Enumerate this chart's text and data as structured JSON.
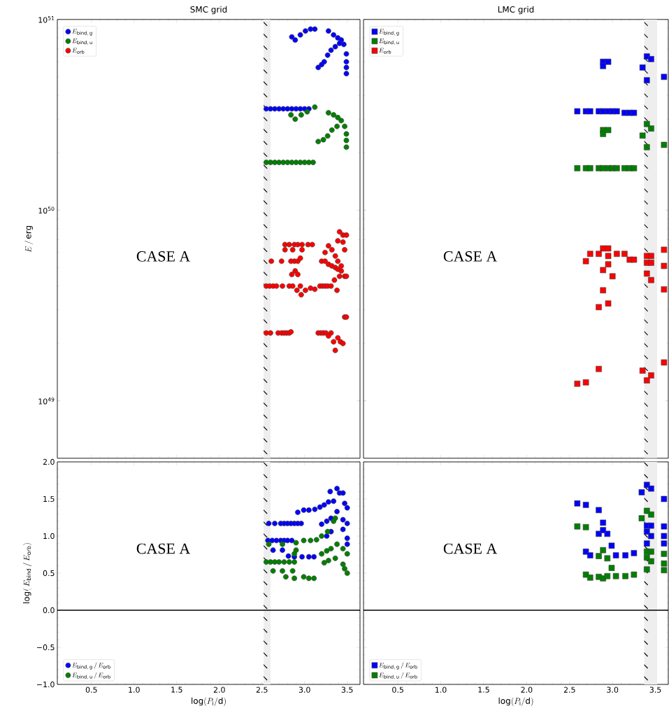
{
  "chart_data": [
    {
      "type": "scatter",
      "title": "SMC grid",
      "ylabel": "E\\,/\\,\\mathrm{erg}",
      "log": true,
      "marker": "circle",
      "legend": "top left",
      "tick_labels": "y",
      "xlim": [
        0.1,
        3.65
      ],
      "ylim": [
        5e+48,
        1e+51
      ],
      "xticks": [
        0.5,
        1.0,
        1.5,
        2.0,
        2.5,
        3.0,
        3.5
      ],
      "yticks": [
        {
          "value": 1e+49,
          "label": "10$^{49}$"
        },
        {
          "value": 1e+50,
          "label": "10$^{50}$"
        },
        {
          "value": 1e+51,
          "label": "10$^{51}$"
        }
      ],
      "bands": [
        {
          "axis": "x",
          "from": 2.52,
          "to": 2.6,
          "color": "#eeeeee"
        }
      ],
      "annotations": [
        "CASE A"
      ],
      "series": [
        {
          "name": "E_{\\mathrm{bind,\\,g}}",
          "color": "#0000ff",
          "x": [
            2.85,
            2.89,
            2.95,
            3.01,
            3.07,
            3.12,
            3.28,
            3.34,
            3.39,
            3.43,
            3.46,
            3.49,
            3.49,
            3.49,
            3.49,
            3.16,
            3.2,
            3.23,
            3.27,
            3.31,
            3.36,
            3.41,
            2.55,
            2.6,
            2.65,
            2.7,
            2.75,
            2.8,
            2.85,
            2.9,
            2.95,
            3.0,
            3.05
          ],
          "values": [
            8.1e+50,
            7.8e+50,
            8.3e+50,
            8.7e+50,
            8.9e+50,
            8.9e+50,
            8.7e+50,
            8.3e+50,
            8e+50,
            7.8e+50,
            7.4e+50,
            6.6e+50,
            6e+50,
            5.6e+50,
            5.2e+50,
            5.6e+50,
            5.8e+50,
            6e+50,
            6.5e+50,
            6.9e+50,
            7.2e+50,
            7.5e+50,
            3.4e+50,
            3.4e+50,
            3.4e+50,
            3.4e+50,
            3.4e+50,
            3.4e+50,
            3.4e+50,
            3.4e+50,
            3.4e+50,
            3.4e+50,
            3.4e+50
          ]
        },
        {
          "name": "E_{\\mathrm{bind,\\,u}}",
          "color": "#008000",
          "x": [
            2.84,
            2.89,
            2.96,
            3.03,
            3.12,
            3.28,
            3.34,
            3.39,
            3.43,
            3.47,
            3.49,
            3.49,
            3.49,
            3.16,
            3.22,
            3.27,
            3.32,
            3.38,
            2.55,
            2.6,
            2.65,
            2.7,
            2.75,
            2.8,
            2.85,
            2.9,
            2.95,
            3.0,
            3.05,
            3.1
          ],
          "values": [
            3.16e+50,
            3e+50,
            3.16e+50,
            3.28e+50,
            3.47e+50,
            3.24e+50,
            3.16e+50,
            3.06e+50,
            2.95e+50,
            2.75e+50,
            2.51e+50,
            2.32e+50,
            2.14e+50,
            2.29e+50,
            2.34e+50,
            2.45e+50,
            2.63e+50,
            2.75e+50,
            1.78e+50,
            1.78e+50,
            1.78e+50,
            1.78e+50,
            1.78e+50,
            1.78e+50,
            1.78e+50,
            1.78e+50,
            1.78e+50,
            1.78e+50,
            1.78e+50,
            1.78e+50
          ]
        },
        {
          "name": "E_{\\mathrm{orb}}",
          "color": "#ff0000",
          "x": [
            2.77,
            2.82,
            2.88,
            2.92,
            2.97,
            3.04,
            3.09,
            2.77,
            2.86,
            2.97,
            2.61,
            2.73,
            2.84,
            2.88,
            2.92,
            2.95,
            2.89,
            2.92,
            2.85,
            2.55,
            2.59,
            2.63,
            2.67,
            2.74,
            2.82,
            2.86,
            2.95,
            2.91,
            2.96,
            3.01,
            3.07,
            3.12,
            3.18,
            3.21,
            3.24,
            3.27,
            3.31,
            3.35,
            3.38,
            3.2,
            3.24,
            3.28,
            3.32,
            3.36,
            3.39,
            3.43,
            3.43,
            3.41,
            3.47,
            3.49,
            3.24,
            3.28,
            3.32,
            3.36,
            3.39,
            3.41,
            3.45,
            3.49,
            3.39,
            3.45,
            3.47,
            3.47,
            3.49,
            2.55,
            2.6,
            2.69,
            2.73,
            2.76,
            2.79,
            2.82,
            2.84,
            3.16,
            3.19,
            3.22,
            3.25,
            3.31,
            3.28,
            3.34,
            3.39,
            3.42,
            3.45,
            3.36
          ],
          "values": [
            6.6e+49,
            6.6e+49,
            6.6e+49,
            6.6e+49,
            6.6e+49,
            6.6e+49,
            6.6e+49,
            6.2e+49,
            6.2e+49,
            6.2e+49,
            5.4e+49,
            5.4e+49,
            5.4e+49,
            5.4e+49,
            5.4e+49,
            5.6e+49,
            4.8e+49,
            4.6e+49,
            4.6e+49,
            4e+49,
            4e+49,
            4e+49,
            4e+49,
            4e+49,
            4e+49,
            4e+49,
            4e+49,
            3.8e+49,
            3.6e+49,
            3.8e+49,
            3.9e+49,
            3.85e+49,
            4e+49,
            4e+49,
            4e+49,
            4e+49,
            4e+49,
            4.3e+49,
            3.8e+49,
            5.4e+49,
            5.4e+49,
            5.2e+49,
            5.1e+49,
            5e+49,
            4.9e+49,
            5.1e+49,
            4.8e+49,
            4.5e+49,
            4.5e+49,
            4.5e+49,
            6e+49,
            6.5e+49,
            6.2e+49,
            5.75e+49,
            5.4e+49,
            7.7e+49,
            7.4e+49,
            7.4e+49,
            6.9e+49,
            6.8e+49,
            6.2e+49,
            2.75e+49,
            2.75e+49,
            2.27e+49,
            2.27e+49,
            2.27e+49,
            2.27e+49,
            2.27e+49,
            2.27e+49,
            2.27e+49,
            2.3e+49,
            2.27e+49,
            2.27e+49,
            2.27e+49,
            2.27e+49,
            2.27e+49,
            2.19e+49,
            2.04e+49,
            2.14e+49,
            2.04e+49,
            2e+49,
            1.84e+49
          ]
        }
      ]
    },
    {
      "type": "scatter",
      "title": "LMC grid",
      "log": true,
      "marker": "square",
      "legend": "top left",
      "tick_labels": false,
      "xlim": [
        0.1,
        3.65
      ],
      "ylim": [
        5e+48,
        1e+51
      ],
      "xticks": [
        0.5,
        1.0,
        1.5,
        2.0,
        2.5,
        3.0,
        3.5
      ],
      "yticks": [
        1e+49,
        1e+50,
        1e+51
      ],
      "bands": [
        {
          "axis": "x",
          "from": 3.37,
          "to": 3.52,
          "color": "#eeeeee"
        }
      ],
      "annotations": [
        "CASE A"
      ],
      "series": [
        {
          "name": "E_{\\mathrm{bind,\\,g}}",
          "color": "#0000ff",
          "x": [
            2.89,
            2.89,
            2.95,
            3.35,
            3.4,
            3.45,
            3.4,
            3.6,
            2.59,
            2.69,
            2.74,
            2.84,
            2.89,
            2.95,
            3.0,
            3.05,
            3.14,
            3.2,
            3.25
          ],
          "values": [
            6e+50,
            5.7e+50,
            6e+50,
            5.6e+50,
            6.4e+50,
            6.2e+50,
            4.8e+50,
            5e+50,
            3.3e+50,
            3.3e+50,
            3.3e+50,
            3.3e+50,
            3.3e+50,
            3.3e+50,
            3.3e+50,
            3.3e+50,
            3.24e+50,
            3.24e+50,
            3.24e+50
          ]
        },
        {
          "name": "E_{\\mathrm{bind,\\,u}}",
          "color": "#008000",
          "x": [
            2.89,
            2.89,
            2.95,
            3.35,
            3.4,
            3.45,
            3.4,
            3.6,
            2.59,
            2.69,
            2.74,
            2.84,
            2.89,
            2.95,
            3.0,
            3.05,
            3.14,
            3.2,
            3.25
          ],
          "values": [
            2.63e+50,
            2.51e+50,
            2.63e+50,
            2.46e+50,
            2.83e+50,
            2.68e+50,
            2.14e+50,
            2.2e+50,
            1.66e+50,
            1.66e+50,
            1.66e+50,
            1.66e+50,
            1.66e+50,
            1.66e+50,
            1.66e+50,
            1.66e+50,
            1.66e+50,
            1.66e+50,
            1.66e+50
          ]
        },
        {
          "name": "E_{\\mathrm{orb}}",
          "color": "#ff0000",
          "x": [
            2.89,
            2.95,
            2.74,
            2.84,
            3.05,
            3.14,
            2.69,
            3.2,
            3.25,
            2.95,
            2.95,
            2.89,
            3.0,
            2.89,
            2.84,
            2.95,
            3.4,
            3.45,
            3.4,
            3.45,
            3.4,
            3.45,
            3.6,
            3.6,
            3.6,
            3.6,
            2.84,
            3.35,
            3.4,
            3.45,
            2.59,
            2.69
          ],
          "values": [
            6.3e+49,
            6.3e+49,
            5.9e+49,
            5.9e+49,
            5.9e+49,
            5.9e+49,
            5.4e+49,
            5.5e+49,
            5.5e+49,
            5.75e+49,
            5.2e+49,
            4.85e+49,
            4.5e+49,
            3.8e+49,
            3.1e+49,
            3.24e+49,
            5.75e+49,
            5.75e+49,
            5.3e+49,
            5.3e+49,
            4.65e+49,
            4.3e+49,
            6.2e+49,
            5.1e+49,
            3.84e+49,
            1.59e+49,
            1.47e+49,
            1.44e+49,
            1.28e+49,
            1.36e+49,
            1.23e+49,
            1.25e+49
          ]
        }
      ]
    },
    {
      "type": "scatter",
      "xlabel": "\\log(P_{\\mathrm{i}}/\\mathrm{d})",
      "ylabel": "\\log(\\,E_{\\mathrm{bind}}\\,/\\,E_{\\mathrm{orb}})",
      "marker": "circle",
      "legend": "bottom left",
      "xlim": [
        0.1,
        3.65
      ],
      "ylim": [
        -1,
        2
      ],
      "xticks": [
        {
          "value": 0.5,
          "label": "0.5"
        },
        {
          "value": 1.0,
          "label": "1.0"
        },
        {
          "value": 1.5,
          "label": "1.5"
        },
        {
          "value": 2.0,
          "label": "2.0"
        },
        {
          "value": 2.5,
          "label": "2.5"
        },
        {
          "value": 3.0,
          "label": "3.0"
        },
        {
          "value": 3.5,
          "label": "3.5"
        }
      ],
      "yticks": [
        {
          "value": -1.0,
          "label": "−1.0"
        },
        {
          "value": -0.5,
          "label": "−0.5"
        },
        {
          "value": 0.0,
          "label": "0.0"
        },
        {
          "value": 0.5,
          "label": "0.5"
        },
        {
          "value": 1.0,
          "label": "1.0"
        },
        {
          "value": 1.5,
          "label": "1.5"
        },
        {
          "value": 2.0,
          "label": "2.0"
        }
      ],
      "bands": [
        {
          "axis": "x",
          "from": 2.52,
          "to": 2.6,
          "color": "#eeeeee"
        }
      ],
      "ref_lines": [
        {
          "axis": "y",
          "value": 0,
          "color": "#000000"
        }
      ],
      "annotations": [
        "CASE A"
      ],
      "series": [
        {
          "name": "E_{\\mathrm{bind,\\,g}}\\,/\\,E_{\\mathrm{orb}}",
          "color": "#0000ff",
          "x": [
            2.58,
            2.65,
            2.72,
            2.76,
            2.8,
            2.84,
            2.88,
            2.92,
            2.96,
            2.92,
            2.99,
            3.05,
            3.12,
            3.18,
            3.23,
            3.28,
            3.34,
            3.3,
            3.38,
            3.41,
            3.45,
            3.47,
            3.5,
            2.57,
            2.62,
            2.67,
            2.72,
            2.76,
            2.8,
            2.85,
            3.2,
            3.26,
            3.31,
            3.38,
            3.45,
            3.5,
            3.45,
            3.5,
            3.5,
            3.31,
            3.26,
            2.63,
            2.74,
            2.81,
            2.88,
            2.97,
            3.05,
            3.11
          ],
          "values": [
            1.17,
            1.17,
            1.17,
            1.17,
            1.17,
            1.17,
            1.17,
            1.17,
            1.17,
            1.32,
            1.35,
            1.35,
            1.36,
            1.39,
            1.42,
            1.46,
            1.47,
            1.6,
            1.64,
            1.58,
            1.58,
            1.44,
            1.38,
            0.94,
            0.94,
            0.94,
            0.94,
            0.94,
            0.94,
            0.94,
            1.16,
            1.2,
            1.24,
            1.33,
            1.22,
            1.17,
            1.09,
            0.97,
            0.89,
            1.06,
            1.0,
            0.81,
            0.81,
            0.73,
            0.72,
            0.72,
            0.72,
            0.72
          ]
        },
        {
          "name": "E_{\\mathrm{bind,\\,u}}\\,/\\,E_{\\mathrm{orb}}",
          "color": "#008000",
          "x": [
            2.58,
            2.74,
            2.9,
            2.99,
            3.07,
            3.14,
            3.2,
            3.27,
            3.34,
            3.36,
            2.55,
            2.6,
            2.65,
            2.7,
            2.76,
            2.82,
            2.88,
            3.2,
            3.26,
            3.31,
            3.38,
            3.45,
            3.5,
            3.23,
            3.28,
            3.36,
            3.45,
            3.5,
            3.47,
            2.63,
            2.74,
            2.86,
            2.78,
            2.88,
            2.99,
            3.05,
            3.11,
            2.9,
            2.88
          ],
          "values": [
            0.89,
            0.89,
            0.91,
            0.94,
            0.94,
            0.95,
            1.0,
            1.06,
            1.2,
            1.24,
            0.65,
            0.65,
            0.65,
            0.65,
            0.65,
            0.65,
            0.65,
            0.76,
            0.8,
            0.83,
            0.89,
            0.83,
            0.76,
            0.64,
            0.67,
            0.7,
            0.62,
            0.5,
            0.56,
            0.53,
            0.53,
            0.53,
            0.45,
            0.43,
            0.45,
            0.43,
            0.43,
            0.81,
            0.76
          ]
        }
      ]
    },
    {
      "type": "scatter",
      "xlabel": "\\log(P_{\\mathrm{i}}/\\mathrm{d})",
      "marker": "square",
      "legend": "bottom left",
      "tick_labels": "x",
      "xlim": [
        0.1,
        3.65
      ],
      "ylim": [
        -1,
        2
      ],
      "xticks": [
        {
          "value": 0.5,
          "label": "0.5"
        },
        {
          "value": 1.0,
          "label": "1.0"
        },
        {
          "value": 1.5,
          "label": "1.5"
        },
        {
          "value": 2.0,
          "label": "2.0"
        },
        {
          "value": 2.5,
          "label": "2.5"
        },
        {
          "value": 3.0,
          "label": "3.0"
        },
        {
          "value": 3.5,
          "label": "3.5"
        }
      ],
      "yticks": [
        -1.0,
        -0.5,
        0.0,
        0.5,
        1.0,
        1.5,
        2.0
      ],
      "bands": [
        {
          "axis": "x",
          "from": 3.37,
          "to": 3.52,
          "color": "#eeeeee"
        }
      ],
      "ref_lines": [
        {
          "axis": "y",
          "value": 0,
          "color": "#000000"
        }
      ],
      "annotations": [
        "CASE A"
      ],
      "series": [
        {
          "name": "E_{\\mathrm{bind,\\,g}}\\,/\\,E_{\\mathrm{orb}}",
          "color": "#0000ff",
          "x": [
            2.59,
            2.69,
            2.84,
            2.89,
            2.84,
            2.94,
            2.89,
            2.99,
            2.69,
            2.74,
            3.04,
            3.15,
            3.25,
            3.34,
            3.4,
            3.45,
            3.6,
            3.4,
            3.45,
            3.4,
            3.45,
            3.4,
            3.6,
            3.6,
            3.6
          ],
          "values": [
            1.44,
            1.42,
            1.35,
            1.18,
            1.03,
            1.03,
            1.08,
            0.87,
            0.79,
            0.74,
            0.74,
            0.74,
            0.77,
            1.59,
            1.69,
            1.64,
            1.5,
            1.14,
            1.14,
            1.06,
            1.0,
            0.9,
            1.13,
            1.0,
            0.9
          ]
        },
        {
          "name": "E_{\\mathrm{bind,\\,u}}\\,/\\,E_{\\mathrm{orb}}",
          "color": "#008000",
          "x": [
            2.59,
            2.69,
            2.89,
            2.84,
            2.94,
            2.99,
            2.69,
            2.74,
            2.84,
            2.89,
            2.94,
            3.04,
            3.15,
            3.25,
            3.34,
            3.4,
            3.45,
            3.4,
            3.45,
            3.4,
            3.45,
            3.4,
            3.6,
            3.6,
            3.6
          ],
          "values": [
            1.13,
            1.12,
            0.81,
            0.73,
            0.7,
            0.57,
            0.48,
            0.44,
            0.45,
            0.43,
            0.46,
            0.46,
            0.46,
            0.48,
            1.24,
            1.34,
            1.29,
            0.79,
            0.79,
            0.71,
            0.66,
            0.55,
            0.76,
            0.63,
            0.54
          ]
        }
      ]
    }
  ]
}
